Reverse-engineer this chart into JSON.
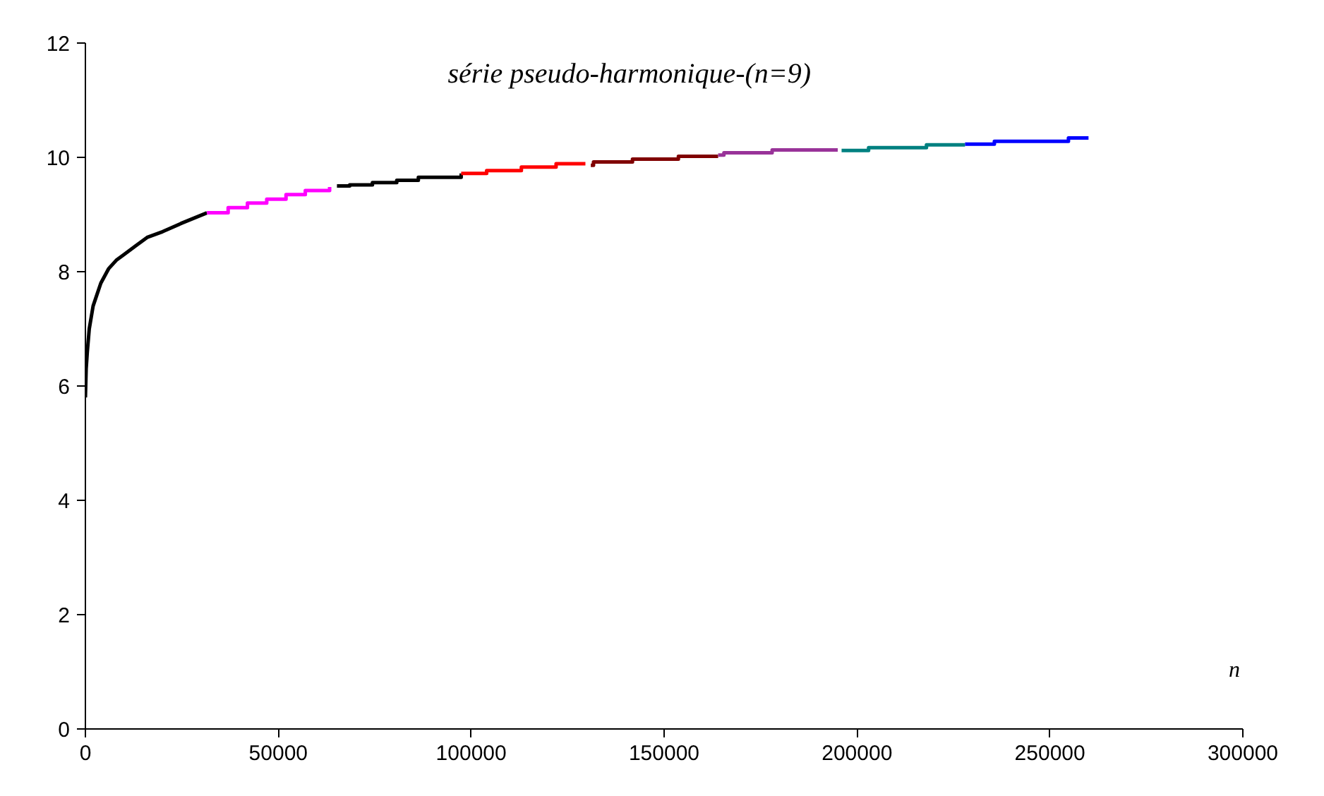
{
  "chart_data": {
    "type": "step",
    "title": "série pseudo-harmonique-(n=9)",
    "xlabel": "n",
    "xlim": [
      0,
      300000
    ],
    "ylim": [
      0,
      12
    ],
    "xticks": [
      0,
      50000,
      100000,
      150000,
      200000,
      250000,
      300000
    ],
    "yticks": [
      0,
      2,
      4,
      6,
      8,
      10,
      12
    ],
    "series": [
      {
        "color": "#000000",
        "type": "line",
        "x": [
          1,
          200,
          500,
          1000,
          2000,
          3000,
          4000,
          6000,
          8000,
          10000,
          13000,
          16000,
          20000,
          25000,
          31500
        ],
        "values": [
          5.8,
          6.3,
          6.6,
          7.0,
          7.4,
          7.6,
          7.8,
          8.05,
          8.2,
          8.3,
          8.45,
          8.6,
          8.7,
          8.85,
          9.03
        ]
      },
      {
        "color": "#ff00ff",
        "x": [
          31500,
          37000,
          42000,
          47000,
          52000,
          57000,
          63300
        ],
        "values": [
          9.03,
          9.12,
          9.2,
          9.27,
          9.35,
          9.42,
          9.48
        ]
      },
      {
        "color": "#000000",
        "x": [
          65200,
          68500,
          74400,
          80700,
          86300,
          97400
        ],
        "values": [
          9.5,
          9.52,
          9.56,
          9.6,
          9.65,
          9.72
        ]
      },
      {
        "color": "#ff0000",
        "x": [
          97400,
          104000,
          113000,
          122000,
          129600
        ],
        "values": [
          9.72,
          9.77,
          9.83,
          9.89,
          9.89
        ]
      },
      {
        "color": "#800000",
        "x": [
          131000,
          131700,
          141800,
          153700,
          164000
        ],
        "values": [
          9.86,
          9.92,
          9.97,
          10.02,
          10.02
        ]
      },
      {
        "color": "#993399",
        "x": [
          164000,
          165500,
          178000,
          195000
        ],
        "values": [
          10.04,
          10.08,
          10.13,
          10.13
        ]
      },
      {
        "color": "#008080",
        "x": [
          196000,
          203000,
          218000,
          228000
        ],
        "values": [
          10.12,
          10.17,
          10.22,
          10.22
        ]
      },
      {
        "color": "#0000ff",
        "x": [
          228000,
          235600,
          254800,
          260000
        ],
        "values": [
          10.23,
          10.28,
          10.34,
          10.34
        ]
      }
    ]
  }
}
